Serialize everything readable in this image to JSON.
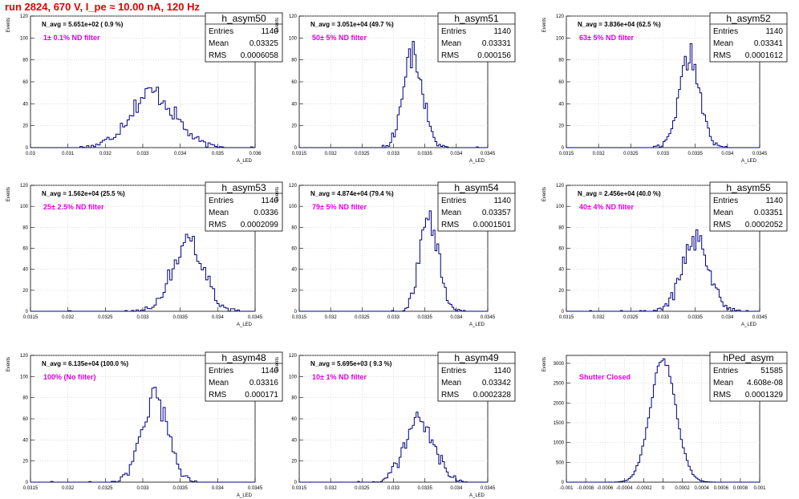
{
  "page": {
    "title": "run 2824,   670 V, I_pe ≈ 10.00 nA, 120 Hz"
  },
  "colors": {
    "title": "#e00000",
    "filter_text": "#e000e0",
    "histogram": "#000080",
    "grid": "#c8c8c8"
  },
  "chart_data": [
    {
      "type": "histogram",
      "name": "h_asym50",
      "ylabel": "Events",
      "xlabel": "A_LED",
      "n_avg": "N_avg = 5.651e+02 ( 0.9 %)",
      "filter_label": "1± 0.1% ND filter",
      "stats": {
        "entries_label": "Entries",
        "entries": "1140",
        "mean_label": "Mean",
        "mean": "0.03325",
        "rms_label": "RMS",
        "rms": "0.0006058"
      },
      "xlim": [
        0.03,
        0.036
      ],
      "ylim": [
        0,
        120
      ],
      "xticks": [
        "0.03",
        "0.031",
        "0.032",
        "0.033",
        "0.034",
        "0.035",
        "0.036"
      ],
      "yticks": [
        "0",
        "20",
        "40",
        "60",
        "80",
        "100",
        "120"
      ],
      "gaussian": {
        "mean": 0.03325,
        "sigma": 0.0006058,
        "peak": 50
      }
    },
    {
      "type": "histogram",
      "name": "h_asym51",
      "ylabel": "Events",
      "xlabel": "A_LED",
      "n_avg": "N_avg = 3.051e+04 (49.7 %)",
      "filter_label": "50± 5% ND filter",
      "stats": {
        "entries_label": "Entries",
        "entries": "1140",
        "mean_label": "Mean",
        "mean": "0.03331",
        "rms_label": "RMS",
        "rms": "0.000156"
      },
      "xlim": [
        0.0315,
        0.0345
      ],
      "ylim": [
        0,
        120
      ],
      "xticks": [
        "0.0315",
        "0.032",
        "0.0325",
        "0.033",
        "0.0335",
        "0.034",
        "0.0345"
      ],
      "yticks": [
        "0",
        "20",
        "40",
        "60",
        "80",
        "100",
        "120"
      ],
      "gaussian": {
        "mean": 0.03331,
        "sigma": 0.000156,
        "peak": 86
      }
    },
    {
      "type": "histogram",
      "name": "h_asym52",
      "ylabel": "Events",
      "xlabel": "A_LED",
      "n_avg": "N_avg = 3.836e+04 (62.5 %)",
      "filter_label": "63± 5% ND filter",
      "stats": {
        "entries_label": "Entries",
        "entries": "1140",
        "mean_label": "Mean",
        "mean": "0.03341",
        "rms_label": "RMS",
        "rms": "0.0001612"
      },
      "xlim": [
        0.0315,
        0.0345
      ],
      "ylim": [
        0,
        120
      ],
      "xticks": [
        "0.0315",
        "0.032",
        "0.0325",
        "0.033",
        "0.0335",
        "0.034",
        "0.0345"
      ],
      "yticks": [
        "0",
        "20",
        "40",
        "60",
        "80",
        "100",
        "120"
      ],
      "gaussian": {
        "mean": 0.03341,
        "sigma": 0.0001612,
        "peak": 84
      }
    },
    {
      "type": "histogram",
      "name": "h_asym53",
      "ylabel": "Events",
      "xlabel": "A_LED",
      "n_avg": "N_avg = 1.562e+04 (25.5 %)",
      "filter_label": "25± 2.5% ND filter",
      "stats": {
        "entries_label": "Entries",
        "entries": "1140",
        "mean_label": "Mean",
        "mean": "0.0336",
        "rms_label": "RMS",
        "rms": "0.0002099"
      },
      "xlim": [
        0.0315,
        0.0345
      ],
      "ylim": [
        0,
        120
      ],
      "xticks": [
        "0.0315",
        "0.032",
        "0.0325",
        "0.033",
        "0.0335",
        "0.034",
        "0.0345"
      ],
      "yticks": [
        "0",
        "20",
        "40",
        "60",
        "80",
        "100",
        "120"
      ],
      "gaussian": {
        "mean": 0.0336,
        "sigma": 0.0002099,
        "peak": 68
      }
    },
    {
      "type": "histogram",
      "name": "h_asym54",
      "ylabel": "Events",
      "xlabel": "A_LED",
      "n_avg": "N_avg = 4.874e+04 (79.4 %)",
      "filter_label": "79± 5% ND filter",
      "stats": {
        "entries_label": "Entries",
        "entries": "1140",
        "mean_label": "Mean",
        "mean": "0.03357",
        "rms_label": "RMS",
        "rms": "0.0001501"
      },
      "xlim": [
        0.0315,
        0.0345
      ],
      "ylim": [
        0,
        120
      ],
      "xticks": [
        "0.0315",
        "0.032",
        "0.0325",
        "0.033",
        "0.0335",
        "0.034",
        "0.0345"
      ],
      "yticks": [
        "0",
        "20",
        "40",
        "60",
        "80",
        "100",
        "120"
      ],
      "gaussian": {
        "mean": 0.03357,
        "sigma": 0.0001501,
        "peak": 88
      }
    },
    {
      "type": "histogram",
      "name": "h_asym55",
      "ylabel": "Events",
      "xlabel": "A_LED",
      "n_avg": "N_avg = 2.456e+04 (40.0 %)",
      "filter_label": "40± 4% ND filter",
      "stats": {
        "entries_label": "Entries",
        "entries": "1140",
        "mean_label": "Mean",
        "mean": "0.03351",
        "rms_label": "RMS",
        "rms": "0.0002052"
      },
      "xlim": [
        0.0315,
        0.0345
      ],
      "ylim": [
        0,
        120
      ],
      "xticks": [
        "0.0315",
        "0.032",
        "0.0325",
        "0.033",
        "0.0335",
        "0.034",
        "0.0345"
      ],
      "yticks": [
        "0",
        "20",
        "40",
        "60",
        "80",
        "100",
        "120"
      ],
      "gaussian": {
        "mean": 0.03351,
        "sigma": 0.0002052,
        "peak": 68
      }
    },
    {
      "type": "histogram",
      "name": "h_asym48",
      "ylabel": "Events",
      "xlabel": "A_LED",
      "n_avg": "N_avg = 6.135e+04 (100.0 %)",
      "filter_label": "100% (No filter)",
      "stats": {
        "entries_label": "Entries",
        "entries": "1140",
        "mean_label": "Mean",
        "mean": "0.03316",
        "rms_label": "RMS",
        "rms": "0.000171"
      },
      "xlim": [
        0.0315,
        0.0345
      ],
      "ylim": [
        0,
        120
      ],
      "xticks": [
        "0.0315",
        "0.032",
        "0.0325",
        "0.033",
        "0.0335",
        "0.034",
        "0.0345"
      ],
      "yticks": [
        "0",
        "20",
        "40",
        "60",
        "80",
        "100",
        "120"
      ],
      "gaussian": {
        "mean": 0.03316,
        "sigma": 0.000171,
        "peak": 80
      }
    },
    {
      "type": "histogram",
      "name": "h_asym49",
      "ylabel": "Events",
      "xlabel": "A_LED",
      "n_avg": "N_avg = 5.695e+03 ( 9.3 %)",
      "filter_label": "10± 1% ND filter",
      "stats": {
        "entries_label": "Entries",
        "entries": "1140",
        "mean_label": "Mean",
        "mean": "0.03342",
        "rms_label": "RMS",
        "rms": "0.0002328"
      },
      "xlim": [
        0.0315,
        0.0345
      ],
      "ylim": [
        0,
        120
      ],
      "xticks": [
        "0.0315",
        "0.032",
        "0.0325",
        "0.033",
        "0.0335",
        "0.034",
        "0.0345"
      ],
      "yticks": [
        "0",
        "20",
        "40",
        "60",
        "80",
        "100",
        "120"
      ],
      "gaussian": {
        "mean": 0.03342,
        "sigma": 0.0002328,
        "peak": 60
      }
    },
    {
      "type": "histogram",
      "name": "hPed_asym",
      "ylabel": "Events",
      "xlabel": "",
      "n_avg": "",
      "filter_label": "Shutter Closed",
      "stats": {
        "entries_label": "Entries",
        "entries": "51585",
        "mean_label": "Mean",
        "mean": "4.608e-08",
        "rms_label": "RMS",
        "rms": "0.0001329"
      },
      "xlim": [
        -0.001,
        0.001
      ],
      "ylim": [
        0,
        3200
      ],
      "xticks": [
        "-0.001",
        "-0.0008",
        "-0.0006",
        "-0.0004",
        "-0.0002",
        "0",
        "0.0002",
        "0.0004",
        "0.0006",
        "0.0008",
        "0.001"
      ],
      "yticks": [
        "0",
        "500",
        "1000",
        "1500",
        "2000",
        "2500",
        "3000"
      ],
      "yticks_values": [
        0,
        500,
        1000,
        1500,
        2000,
        2500,
        3000
      ],
      "gaussian": {
        "mean": 0.0,
        "sigma": 0.0001329,
        "peak": 3100
      }
    }
  ]
}
